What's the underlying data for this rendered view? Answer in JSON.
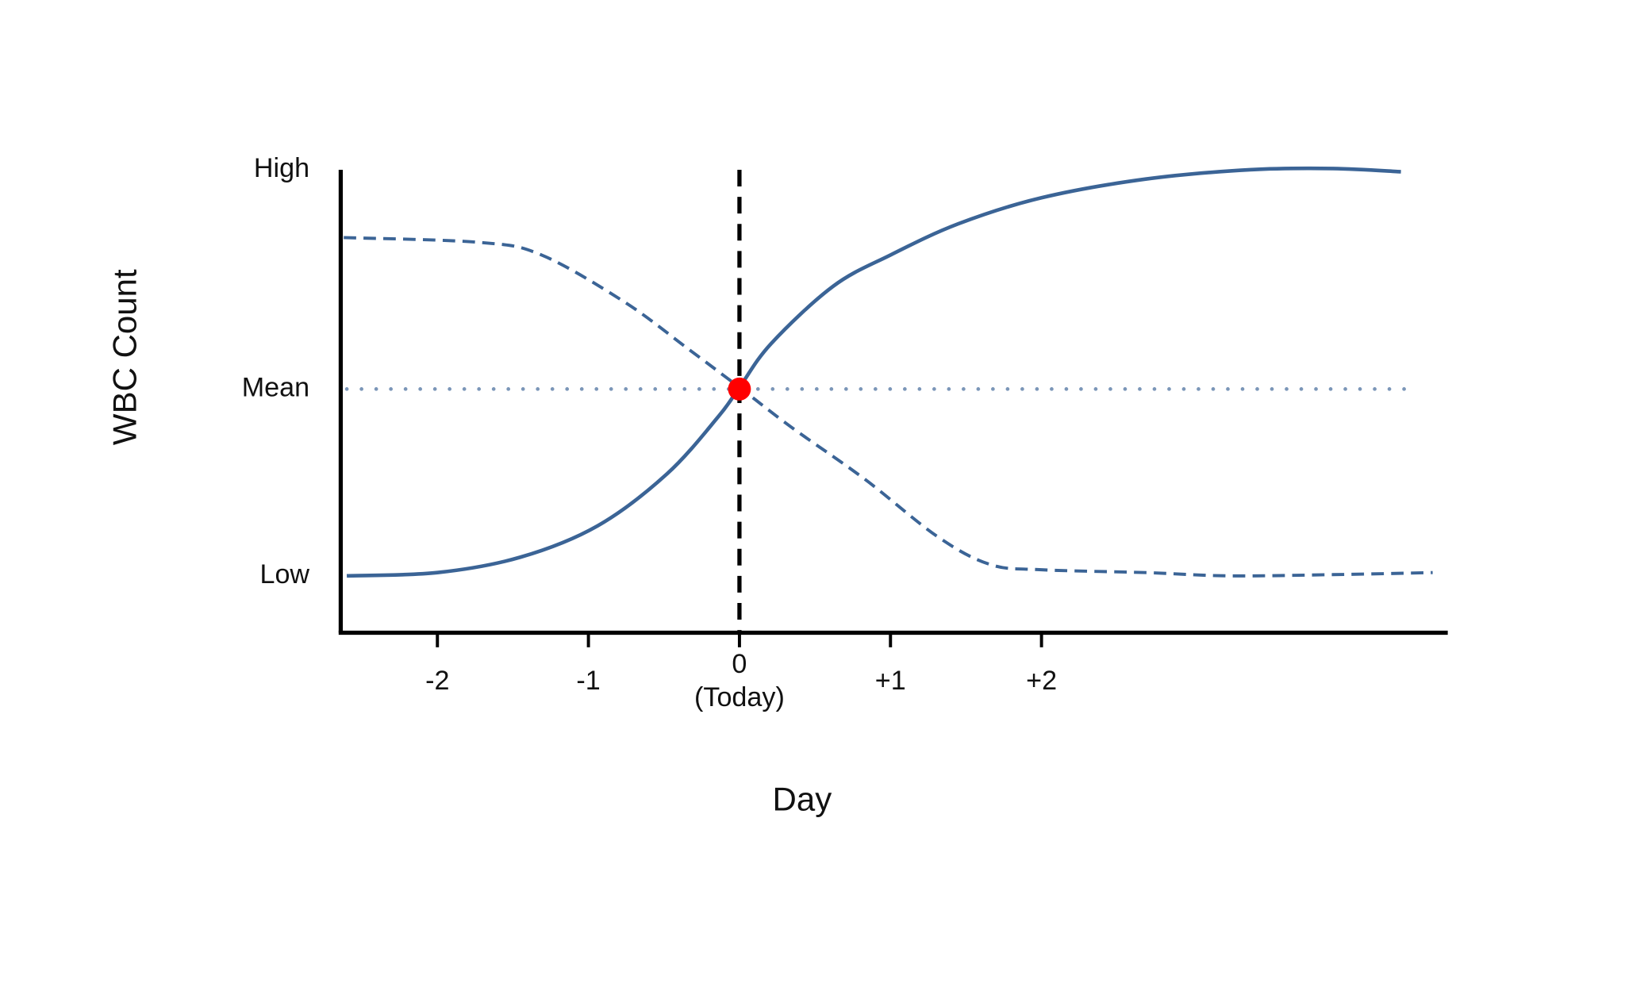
{
  "chart_data": {
    "type": "line",
    "x_label": "Day",
    "y_label": "WBC Count",
    "xlim": [
      -2.64,
      4.69
    ],
    "ylim": [
      -1.4,
      10
    ],
    "xticks": [
      -2,
      -1,
      {
        "value": 0,
        "label": "0 (Today)"
      },
      {
        "value": 1,
        "label": "+1"
      },
      {
        "value": 2,
        "label": "+2"
      }
    ],
    "yticks": [
      {
        "value": 0,
        "label": "Low"
      },
      {
        "value": 4.6,
        "label": "Mean"
      },
      {
        "value": 10,
        "label": "High"
      }
    ],
    "series": [
      {
        "color": "#3b6496",
        "style": "solid",
        "x": [
          -2.6,
          -2,
          -1.45,
          -0.94,
          -0.48,
          -0.14,
          0,
          0.21,
          0.62,
          1,
          1.45,
          2,
          2.69,
          3.38,
          3.93,
          4.38
        ],
        "values": [
          0,
          0.08,
          0.46,
          1.23,
          2.51,
          3.92,
          4.64,
          5.72,
          7.13,
          7.9,
          8.67,
          9.31,
          9.77,
          10,
          10.03,
          9.95
        ]
      },
      {
        "color": "#3b6496",
        "style": "dashed",
        "x": [
          -2.62,
          -1.72,
          -1.31,
          -0.76,
          -0.34,
          0,
          0.34,
          0.83,
          1.31,
          1.66,
          2,
          2.69,
          3.24,
          3.93,
          4.59
        ],
        "values": [
          8.33,
          8.21,
          7.9,
          6.74,
          5.59,
          4.64,
          3.67,
          2.38,
          0.97,
          0.28,
          0.15,
          0.08,
          0,
          0.03,
          0.08
        ]
      }
    ],
    "mean_line": {
      "y": 4.6,
      "x": [
        -2.6,
        4.45
      ],
      "color": "#7b96b8"
    },
    "today_line": {
      "x": 0,
      "color": "#000000"
    },
    "point": {
      "x": 0,
      "y": 4.6,
      "color": "#ff0000"
    }
  }
}
